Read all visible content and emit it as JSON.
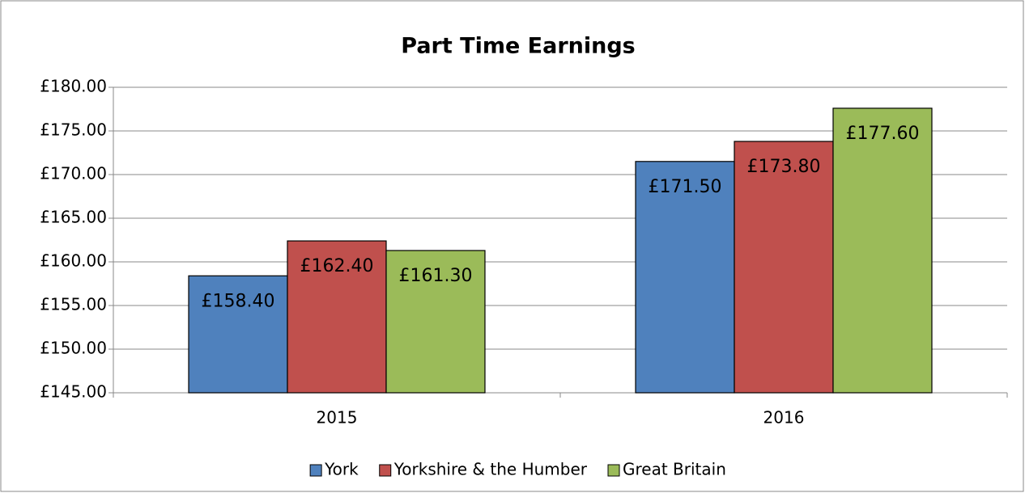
{
  "chart_data": {
    "type": "bar",
    "title": "Part Time Earnings",
    "categories": [
      "2015",
      "2016"
    ],
    "series": [
      {
        "name": "York",
        "color": "#4f81bd",
        "values": [
          158.4,
          171.5
        ],
        "value_labels": [
          "£158.40",
          "£171.50"
        ]
      },
      {
        "name": "Yorkshire & the Humber",
        "color": "#c0504d",
        "values": [
          162.4,
          173.8
        ],
        "value_labels": [
          "£162.40",
          "£173.80"
        ]
      },
      {
        "name": "Great Britain",
        "color": "#9bbb59",
        "values": [
          161.3,
          177.6
        ],
        "value_labels": [
          "£161.30",
          "£177.60"
        ]
      }
    ],
    "ylim": [
      145,
      180
    ],
    "yticks": [
      {
        "value": 145,
        "label": "£145.00"
      },
      {
        "value": 150,
        "label": "£150.00"
      },
      {
        "value": 155,
        "label": "£155.00"
      },
      {
        "value": 160,
        "label": "£160.00"
      },
      {
        "value": 165,
        "label": "£165.00"
      },
      {
        "value": 170,
        "label": "£170.00"
      },
      {
        "value": 175,
        "label": "£175.00"
      },
      {
        "value": 180,
        "label": "£180.00"
      }
    ],
    "grid": true,
    "legend": "bottom"
  }
}
